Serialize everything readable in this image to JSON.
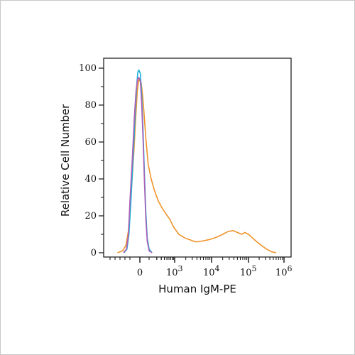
{
  "chart_data": {
    "type": "line",
    "title": "",
    "xlabel": "Human IgM-PE",
    "ylabel": "Relative Cell Number",
    "x_scale": "biexponential",
    "xlim": [
      -600,
      1000000
    ],
    "ylim": [
      0,
      100
    ],
    "y_ticks": [
      {
        "value": 0,
        "label": "0"
      },
      {
        "value": 20,
        "label": "20"
      },
      {
        "value": 40,
        "label": "40"
      },
      {
        "value": 60,
        "label": "60"
      },
      {
        "value": 80,
        "label": "80"
      },
      {
        "value": 100,
        "label": "100"
      }
    ],
    "x_ticks": [
      {
        "value": 0,
        "base": "0",
        "exp": ""
      },
      {
        "value": 1000,
        "base": "10",
        "exp": "3"
      },
      {
        "value": 10000,
        "base": "10",
        "exp": "4"
      },
      {
        "value": 100000,
        "base": "10",
        "exp": "5"
      },
      {
        "value": 1000000,
        "base": "10",
        "exp": "6"
      }
    ],
    "grid": false,
    "legend": "none",
    "series": [
      {
        "color": "#f0932b",
        "points": [
          [
            -350,
            0
          ],
          [
            -250,
            1
          ],
          [
            -180,
            4
          ],
          [
            -130,
            12
          ],
          [
            -90,
            30
          ],
          [
            -60,
            55
          ],
          [
            -40,
            75
          ],
          [
            -25,
            88
          ],
          [
            -10,
            94
          ],
          [
            0,
            93
          ],
          [
            15,
            92
          ],
          [
            30,
            85
          ],
          [
            45,
            76
          ],
          [
            65,
            62
          ],
          [
            90,
            48
          ],
          [
            120,
            40
          ],
          [
            160,
            34
          ],
          [
            230,
            28
          ],
          [
            330,
            24
          ],
          [
            460,
            21
          ],
          [
            650,
            18
          ],
          [
            900,
            14
          ],
          [
            1300,
            10
          ],
          [
            1900,
            8
          ],
          [
            2600,
            7
          ],
          [
            3500,
            6
          ],
          [
            4500,
            6
          ],
          [
            6000,
            6.5
          ],
          [
            8000,
            7
          ],
          [
            10000,
            7.5
          ],
          [
            14000,
            8.5
          ],
          [
            20000,
            10
          ],
          [
            28000,
            11.5
          ],
          [
            38000,
            12
          ],
          [
            50000,
            11
          ],
          [
            65000,
            10
          ],
          [
            80000,
            11
          ],
          [
            100000,
            10
          ],
          [
            130000,
            8
          ],
          [
            170000,
            6
          ],
          [
            230000,
            4
          ],
          [
            320000,
            2
          ],
          [
            450000,
            0.5
          ],
          [
            600000,
            0
          ]
        ]
      },
      {
        "color": "#1ab0d8",
        "points": [
          [
            -220,
            0
          ],
          [
            -160,
            2
          ],
          [
            -120,
            10
          ],
          [
            -90,
            28
          ],
          [
            -65,
            55
          ],
          [
            -45,
            78
          ],
          [
            -30,
            92
          ],
          [
            -20,
            98
          ],
          [
            -10,
            99
          ],
          [
            5,
            97
          ],
          [
            20,
            85
          ],
          [
            35,
            65
          ],
          [
            50,
            42
          ],
          [
            65,
            22
          ],
          [
            80,
            8
          ],
          [
            100,
            2
          ],
          [
            130,
            0
          ]
        ]
      },
      {
        "color": "#b060b8",
        "points": [
          [
            -230,
            0
          ],
          [
            -170,
            2
          ],
          [
            -130,
            10
          ],
          [
            -100,
            28
          ],
          [
            -75,
            52
          ],
          [
            -55,
            74
          ],
          [
            -38,
            88
          ],
          [
            -22,
            94
          ],
          [
            -10,
            95
          ],
          [
            5,
            93
          ],
          [
            20,
            80
          ],
          [
            35,
            60
          ],
          [
            50,
            38
          ],
          [
            65,
            18
          ],
          [
            80,
            6
          ],
          [
            100,
            1
          ],
          [
            130,
            0
          ]
        ]
      }
    ]
  }
}
